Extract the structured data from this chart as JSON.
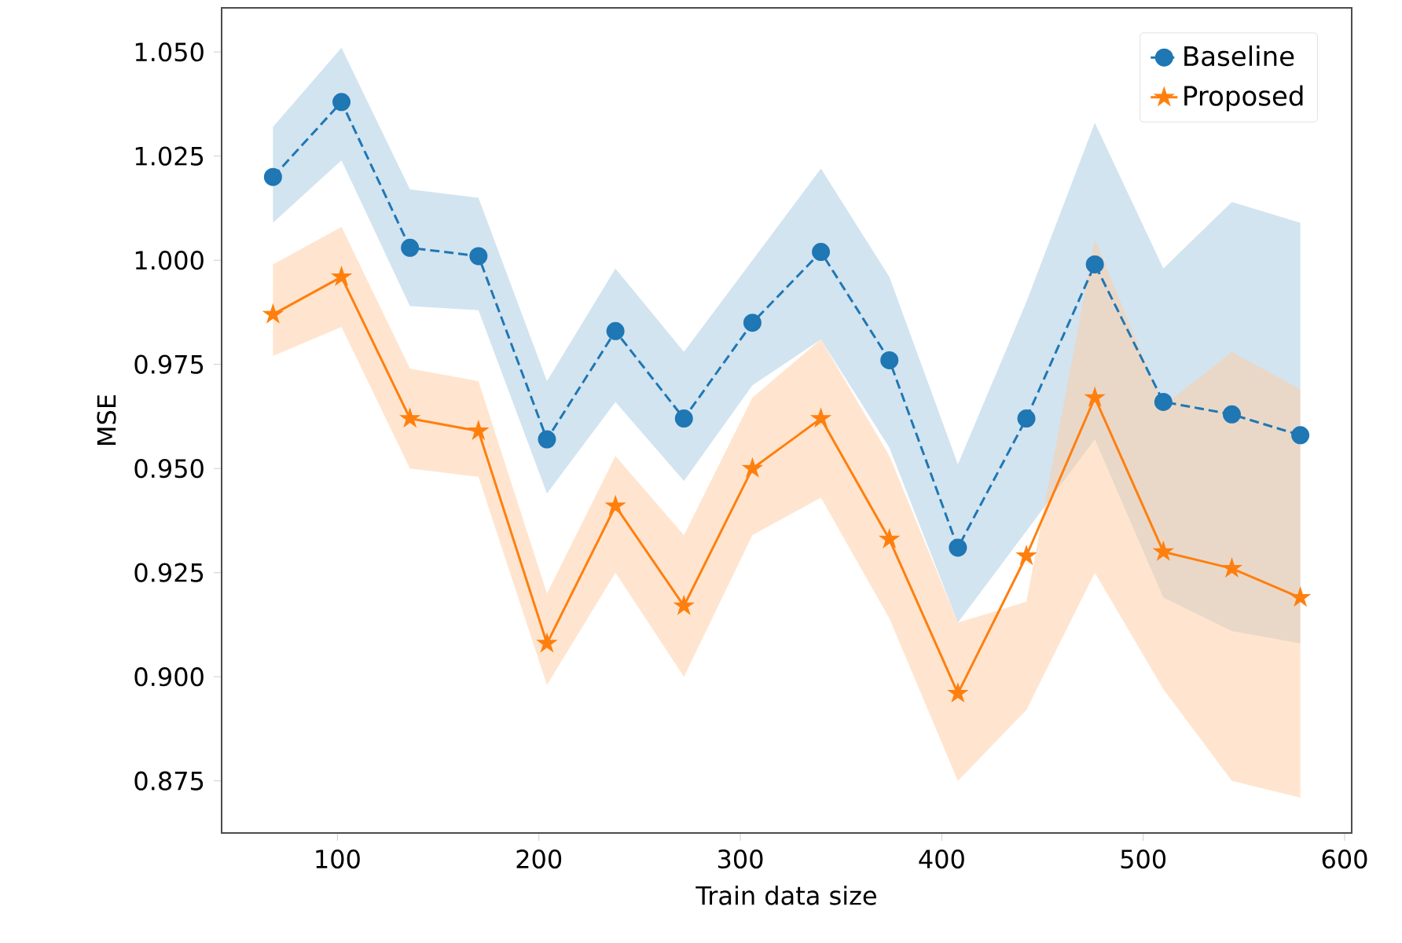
{
  "chart_data": {
    "type": "line",
    "xlabel": "Train data size",
    "ylabel": "MSE",
    "x": [
      68,
      102,
      136,
      170,
      204,
      238,
      272,
      306,
      340,
      374,
      408,
      442,
      476,
      510,
      544,
      578
    ],
    "series": [
      {
        "name": "Baseline",
        "color": "#1f77b4",
        "marker": "circle",
        "line_style": "dashed",
        "values": [
          1.02,
          1.038,
          1.003,
          1.001,
          0.957,
          0.983,
          0.962,
          0.985,
          1.002,
          0.976,
          0.931,
          0.962,
          0.999,
          0.966,
          0.963,
          0.958
        ],
        "upper": [
          1.032,
          1.051,
          1.017,
          1.015,
          0.971,
          0.998,
          0.978,
          1.0,
          1.022,
          0.996,
          0.951,
          0.99,
          1.033,
          0.998,
          1.014,
          1.009
        ],
        "lower": [
          1.009,
          1.024,
          0.989,
          0.988,
          0.944,
          0.966,
          0.947,
          0.97,
          0.981,
          0.955,
          0.913,
          0.935,
          0.957,
          0.919,
          0.911,
          0.908
        ]
      },
      {
        "name": "Proposed",
        "color": "#ff7f0e",
        "marker": "star",
        "line_style": "solid",
        "values": [
          0.987,
          0.996,
          0.962,
          0.959,
          0.908,
          0.941,
          0.917,
          0.95,
          0.962,
          0.933,
          0.896,
          0.929,
          0.967,
          0.93,
          0.926,
          0.919
        ],
        "upper": [
          0.999,
          1.008,
          0.974,
          0.971,
          0.92,
          0.953,
          0.934,
          0.967,
          0.981,
          0.953,
          0.913,
          0.918,
          1.005,
          0.965,
          0.978,
          0.969
        ],
        "lower": [
          0.977,
          0.984,
          0.95,
          0.948,
          0.898,
          0.925,
          0.9,
          0.934,
          0.943,
          0.914,
          0.875,
          0.892,
          0.925,
          0.897,
          0.875,
          0.871
        ]
      }
    ],
    "xlim": [
      42.5,
      603.5
    ],
    "ylim": [
      0.8625,
      1.0606
    ],
    "xticks": [
      100,
      200,
      300,
      400,
      500,
      600
    ],
    "yticks": [
      {
        "value": 0.875,
        "label": "0.875"
      },
      {
        "value": 0.9,
        "label": "0.900"
      },
      {
        "value": 0.925,
        "label": "0.925"
      },
      {
        "value": 0.95,
        "label": "0.950"
      },
      {
        "value": 0.975,
        "label": "0.975"
      },
      {
        "value": 1.0,
        "label": "1.000"
      },
      {
        "value": 1.025,
        "label": "1.025"
      },
      {
        "value": 1.05,
        "label": "1.050"
      }
    ],
    "legend": "top right",
    "grid": false
  }
}
